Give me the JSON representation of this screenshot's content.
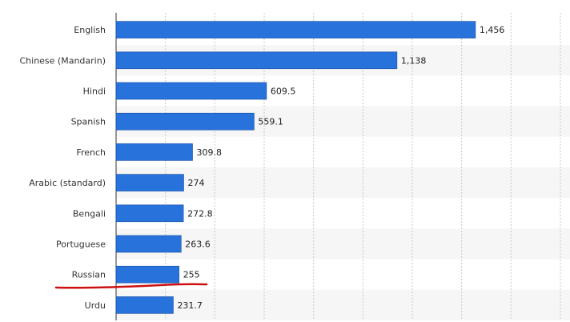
{
  "chart_data": {
    "type": "bar",
    "orientation": "horizontal",
    "title": "",
    "xlabel": "",
    "ylabel": "",
    "categories": [
      "English",
      "Chinese (Mandarin)",
      "Hindi",
      "Spanish",
      "French",
      "Arabic (standard)",
      "Bengali",
      "Portuguese",
      "Russian",
      "Urdu"
    ],
    "values": [
      1456,
      1138,
      609.5,
      559.1,
      309.8,
      274,
      272.8,
      263.6,
      255,
      231.7
    ],
    "value_labels": [
      "1,456",
      "1,138",
      "609.5",
      "559.1",
      "309.8",
      "274",
      "272.8",
      "263.6",
      "255",
      "231.7"
    ],
    "xlim": [
      0,
      1800
    ],
    "gridlines": "vertical, dashed",
    "legend": "none",
    "bar_color": "#2772db",
    "annotations": [
      {
        "type": "hand-drawn underline",
        "target": "Russian",
        "color": "#cc1111"
      }
    ]
  }
}
